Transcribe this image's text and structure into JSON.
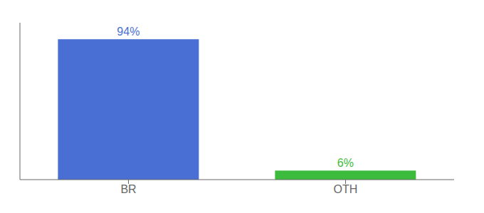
{
  "chart_data": {
    "type": "bar",
    "categories": [
      "BR",
      "OTH"
    ],
    "values": [
      94,
      6
    ],
    "value_labels": [
      "94%",
      "6%"
    ],
    "colors": [
      "#4a6fd4",
      "#3dbb3d"
    ],
    "ylim": [
      0,
      105
    ],
    "data_labels": true,
    "tick_labels": "x"
  }
}
